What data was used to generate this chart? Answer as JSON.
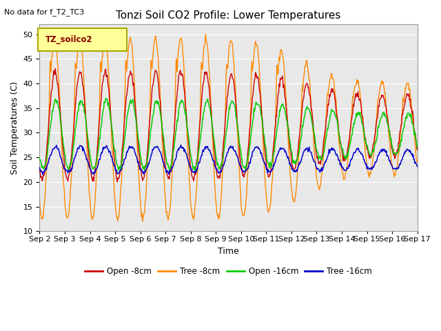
{
  "title": "Tonzi Soil CO2 Profile: Lower Temperatures",
  "subtitle": "No data for f_T2_TC3",
  "ylabel": "Soil Temperatures (C)",
  "xlabel": "Time",
  "ylim": [
    10,
    52
  ],
  "yticks": [
    10,
    15,
    20,
    25,
    30,
    35,
    40,
    45,
    50
  ],
  "bg_color": "#e8e8e8",
  "legend_label": "TZ_soilco2",
  "colors": {
    "open8": "#cc0000",
    "tree8": "#ff8800",
    "open16": "#00cc00",
    "tree16": "#0000cc"
  },
  "series_labels": [
    "Open -8cm",
    "Tree -8cm",
    "Open -16cm",
    "Tree -16cm"
  ],
  "x_tick_labels": [
    "Sep 2",
    "Sep 3",
    "Sep 4",
    "Sep 5",
    "Sep 6",
    "Sep 7",
    "Sep 8",
    "Sep 9",
    "Sep 10",
    "Sep 11",
    "Sep 12",
    "Sep 13",
    "Sep 14",
    "Sep 15",
    "Sep 16",
    "Sep 17"
  ],
  "title_fontsize": 11,
  "axis_fontsize": 9,
  "tick_fontsize": 8
}
